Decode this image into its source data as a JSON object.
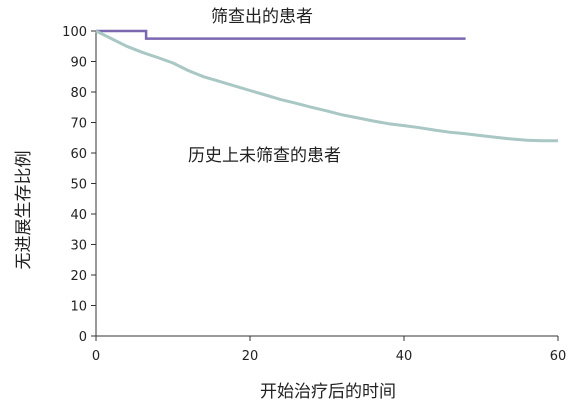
{
  "chart_data": {
    "type": "line",
    "xlabel": "开始治疗后的时间",
    "ylabel": "无进展生存比例",
    "xlim": [
      0,
      60
    ],
    "ylim": [
      0,
      100
    ],
    "xticks": [
      0,
      20,
      40,
      60
    ],
    "yticks": [
      0,
      10,
      20,
      30,
      40,
      50,
      60,
      70,
      80,
      90,
      100
    ],
    "grid": false,
    "series": [
      {
        "name": "筛查出的患者",
        "color": "#7b68b0",
        "step": true,
        "x": [
          0,
          6.5,
          6.5,
          48
        ],
        "y": [
          100,
          100,
          97.5,
          97.5
        ]
      },
      {
        "name": "历史上未筛查的患者",
        "color": "#a9c7c4",
        "step": false,
        "x": [
          0,
          2,
          4,
          6,
          8,
          10,
          12,
          14,
          16,
          18,
          20,
          22,
          24,
          26,
          28,
          30,
          32,
          34,
          36,
          38,
          40,
          42,
          44,
          46,
          48,
          50,
          52,
          54,
          56,
          58,
          60
        ],
        "y": [
          100,
          97.5,
          95,
          93,
          91.3,
          89.5,
          87,
          85,
          83.5,
          82,
          80.5,
          79,
          77.5,
          76.3,
          75,
          73.8,
          72.5,
          71.5,
          70.5,
          69.6,
          69,
          68.3,
          67.5,
          66.8,
          66.3,
          65.7,
          65.1,
          64.6,
          64.2,
          64,
          64
        ]
      }
    ],
    "annotations": [
      {
        "text": "筛查出的患者",
        "series": 0
      },
      {
        "text": "历史上未筛查的患者",
        "series": 1
      }
    ]
  }
}
